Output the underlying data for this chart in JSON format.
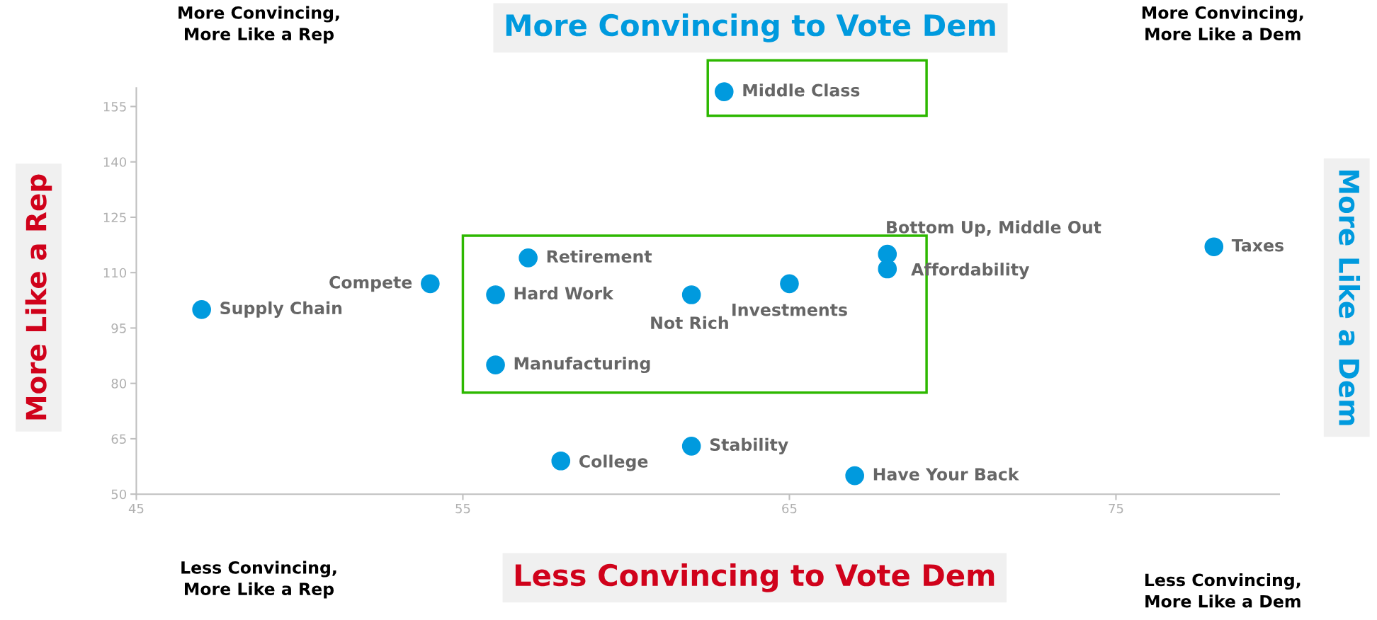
{
  "chart_data": {
    "type": "scatter",
    "marker": "circle",
    "grid": false,
    "xlim": [
      45,
      80
    ],
    "xticks": [
      45,
      55,
      65,
      75
    ],
    "ylim": [
      50,
      160
    ],
    "yticks": [
      50,
      65,
      80,
      95,
      110,
      125,
      140,
      155
    ],
    "series": [
      {
        "color": "#009ade",
        "x": [
          63,
          78,
          68,
          68,
          57,
          54,
          65,
          56,
          62,
          47,
          56,
          58,
          62,
          67
        ],
        "values": [
          159,
          117,
          115,
          111,
          114,
          107,
          107,
          104,
          104,
          100,
          85,
          59,
          63,
          55
        ]
      }
    ],
    "annotations": [
      "More Convincing to Vote Dem",
      "Less Convincing to Vote Dem",
      "More Like a Rep",
      "More Like a Dem",
      "More Convincing,\nMore Like a Rep",
      "More Convincing,\nMore Like a Dem",
      "Less Convincing,\nMore Like a Rep",
      "Less Convincing,\nMore Like a Dem",
      {
        "text": "Middle Class",
        "x": 63,
        "y": 159
      },
      {
        "text": "Taxes",
        "x": 78,
        "y": 117
      },
      {
        "text": "Bottom Up, Middle Out",
        "x": 68,
        "y": 115
      },
      {
        "text": "Affordability",
        "x": 68,
        "y": 111
      },
      {
        "text": "Retirement",
        "x": 57,
        "y": 114
      },
      {
        "text": "Compete",
        "x": 54,
        "y": 107
      },
      {
        "text": "Investments",
        "x": 65,
        "y": 107
      },
      {
        "text": "Hard Work",
        "x": 56,
        "y": 104
      },
      {
        "text": "Not Rich",
        "x": 62,
        "y": 104
      },
      {
        "text": "Supply Chain",
        "x": 47,
        "y": 100
      },
      {
        "text": "Manufacturing",
        "x": 56,
        "y": 85
      },
      {
        "text": "College",
        "x": 58,
        "y": 59
      },
      {
        "text": "Stability",
        "x": 62,
        "y": 63
      },
      {
        "text": "Have Your Back",
        "x": 67,
        "y": 55
      }
    ]
  }
}
